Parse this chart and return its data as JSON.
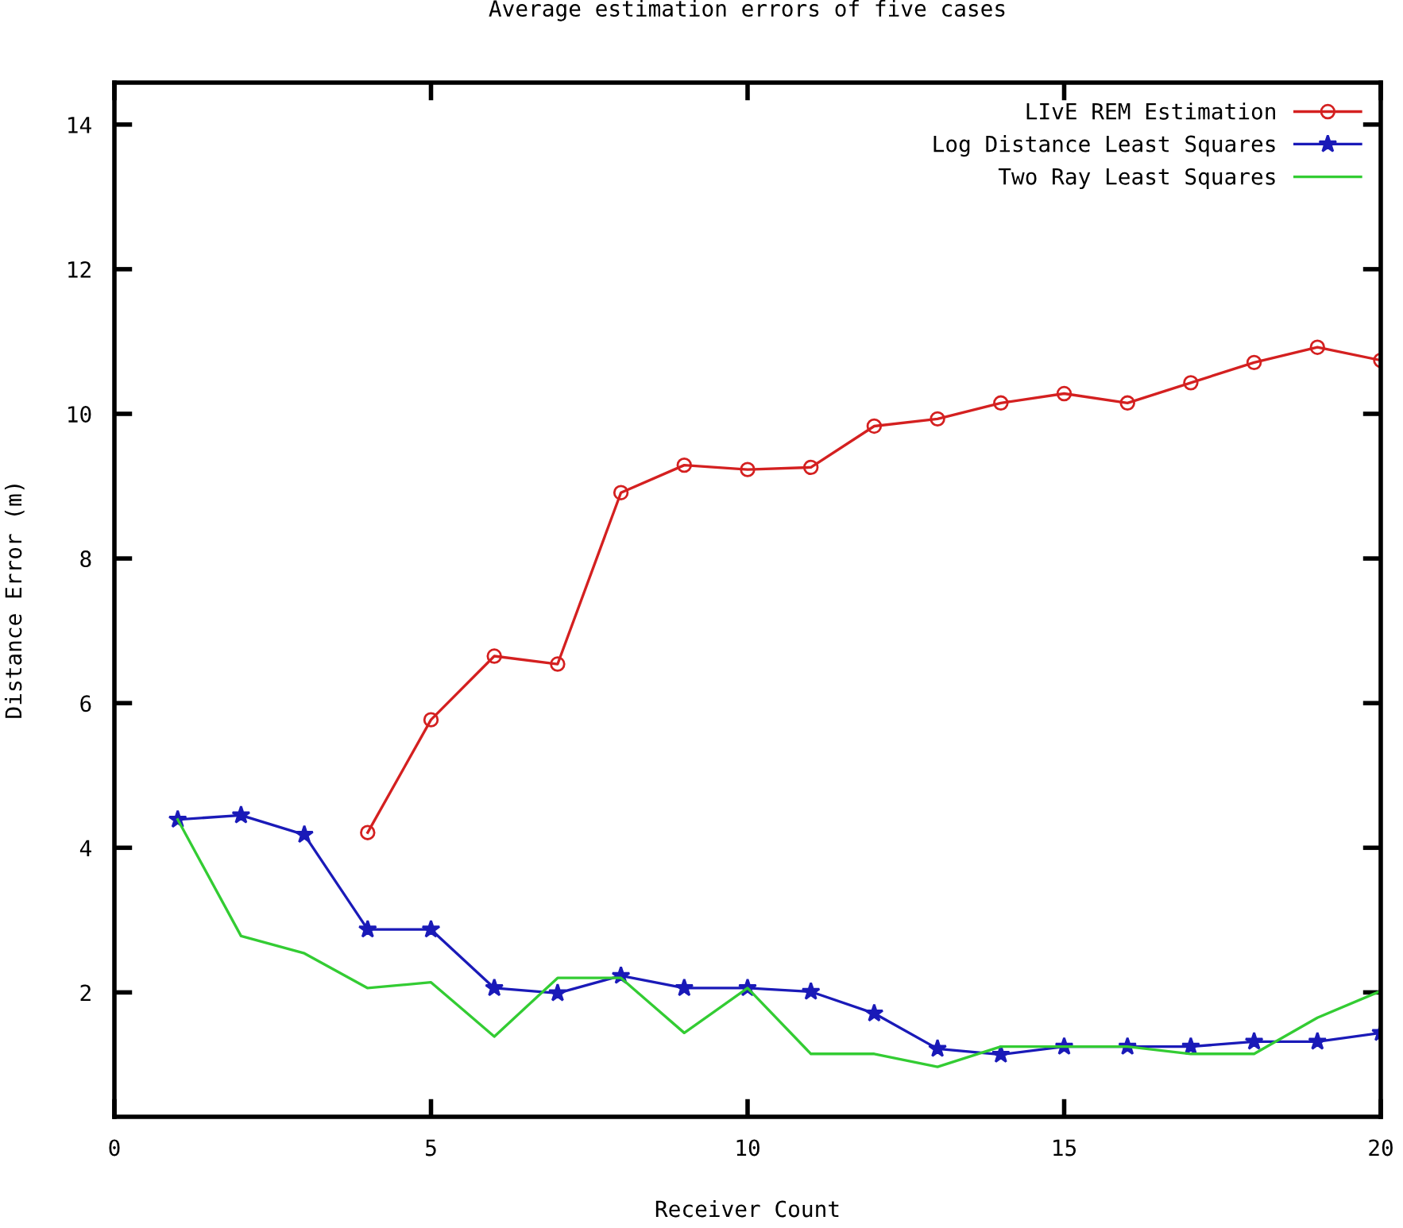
{
  "chart_data": {
    "type": "line",
    "title": "Average estimation errors of five cases",
    "xlabel": "Receiver Count",
    "ylabel": "Distance Error (m)",
    "xlim": [
      0,
      20
    ],
    "xticks": [
      0,
      5,
      10,
      15,
      20
    ],
    "ylim": [
      0.28,
      14.58
    ],
    "yticks": [
      2,
      4,
      6,
      8,
      10,
      12,
      14
    ],
    "grid": false,
    "legend": "top right",
    "series": [
      {
        "name": "LIvE REM Estimation",
        "color": "#d42020",
        "marker": "circle",
        "x": [
          4,
          5,
          6,
          7,
          8,
          9,
          10,
          11,
          12,
          13,
          14,
          15,
          16,
          17,
          18,
          19,
          20
        ],
        "values": [
          4.21,
          5.77,
          6.65,
          6.54,
          8.91,
          9.29,
          9.23,
          9.26,
          9.83,
          9.93,
          10.15,
          10.28,
          10.15,
          10.43,
          10.71,
          10.92,
          10.74
        ]
      },
      {
        "name": "Log Distance Least Squares",
        "color": "#1a1ab8",
        "marker": "star",
        "x": [
          1,
          2,
          3,
          4,
          5,
          6,
          7,
          8,
          9,
          10,
          11,
          12,
          13,
          14,
          15,
          16,
          17,
          18,
          19,
          20
        ],
        "values": [
          4.39,
          4.45,
          4.18,
          2.87,
          2.87,
          2.06,
          1.99,
          2.23,
          2.06,
          2.06,
          2.01,
          1.71,
          1.22,
          1.14,
          1.25,
          1.25,
          1.25,
          1.32,
          1.32,
          1.44
        ]
      },
      {
        "name": "Two Ray Least Squares",
        "color": "#33cc33",
        "marker": "none",
        "x": [
          1,
          2,
          3,
          4,
          5,
          6,
          7,
          8,
          9,
          10,
          11,
          12,
          13,
          14,
          15,
          16,
          17,
          18,
          19,
          20
        ],
        "values": [
          4.39,
          2.78,
          2.54,
          2.06,
          2.14,
          1.39,
          2.2,
          2.2,
          1.44,
          2.06,
          1.15,
          1.15,
          0.97,
          1.25,
          1.25,
          1.25,
          1.15,
          1.15,
          1.65,
          2.02
        ]
      }
    ]
  }
}
